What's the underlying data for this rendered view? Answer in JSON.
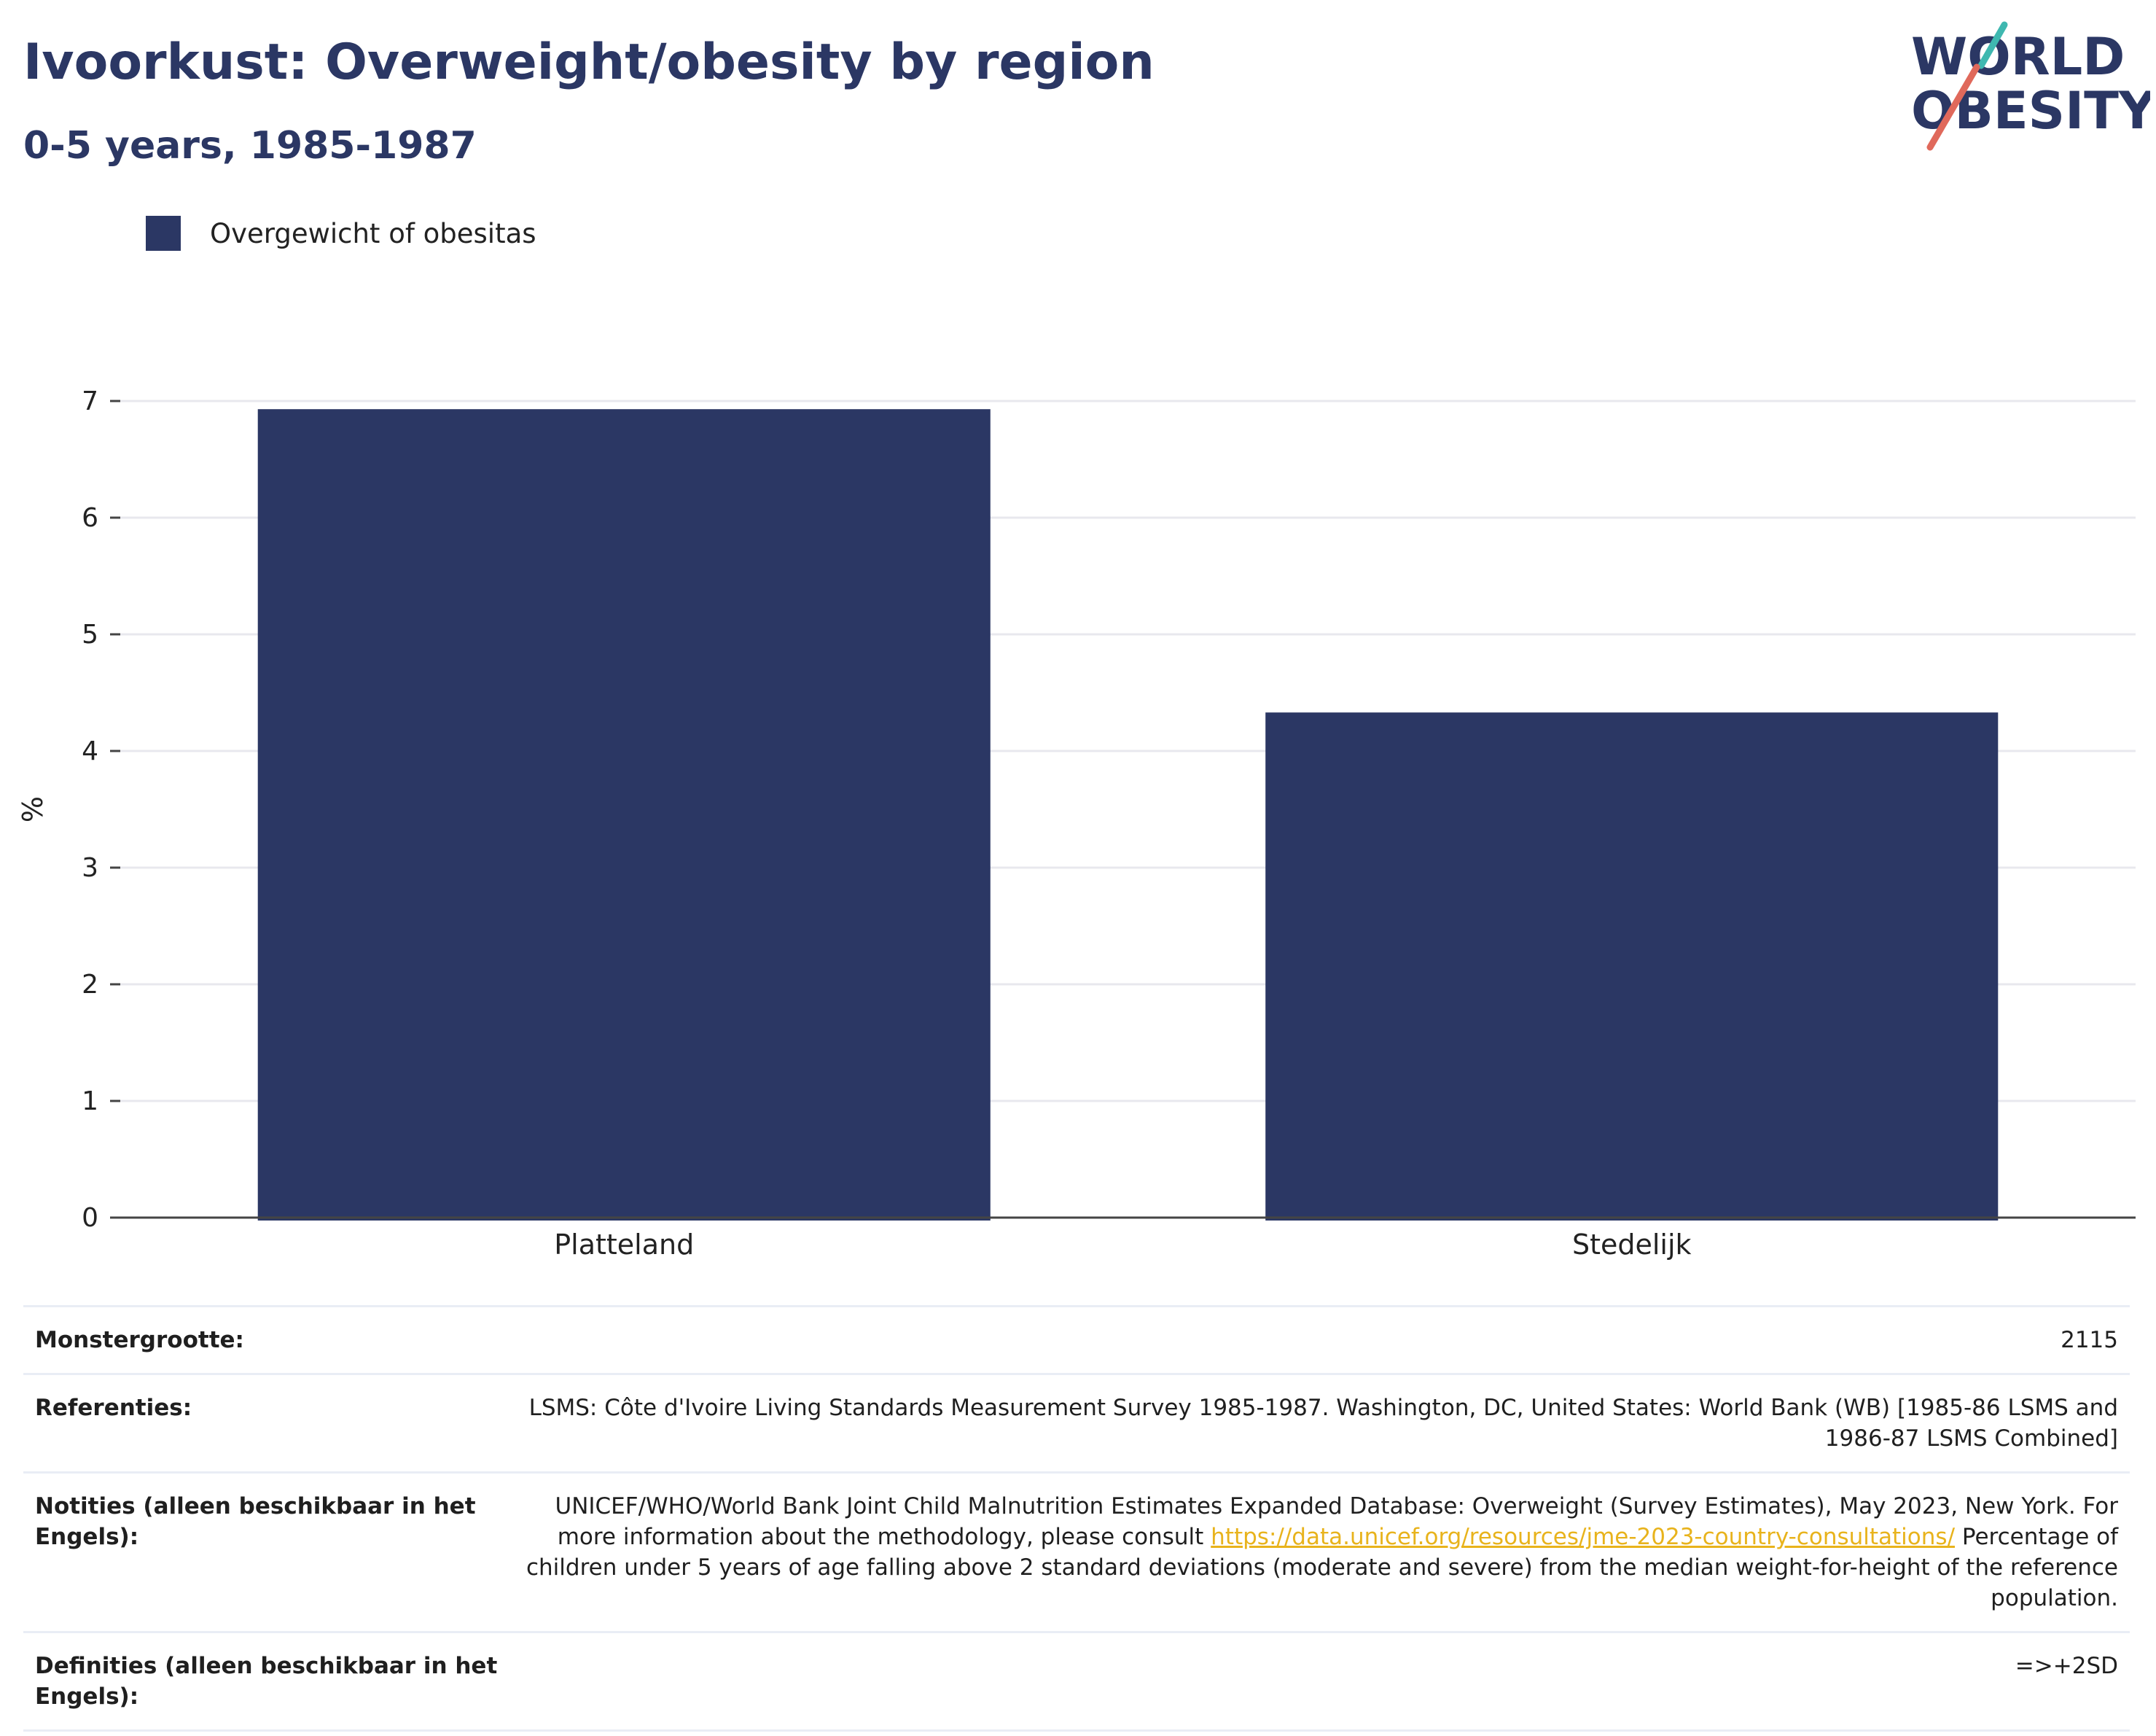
{
  "header": {
    "title": "Ivoorkust: Overweight/obesity by region",
    "subtitle": "0-5 years, 1985-1987"
  },
  "logo": {
    "line1": "WORLD",
    "line2": "OBESITY",
    "accent_teal": "#3fb8b0",
    "accent_red": "#e0695b",
    "text_color": "#2b3764"
  },
  "legend": {
    "items": [
      {
        "label": "Overgewicht of obesitas",
        "color": "#2b3764"
      }
    ]
  },
  "chart_data": {
    "type": "bar",
    "categories": [
      "Platteland",
      "Stedelijk"
    ],
    "series": [
      {
        "name": "Overgewicht of obesitas",
        "values": [
          6.93,
          4.33
        ],
        "color": "#2b3764"
      }
    ],
    "ylabel": "%",
    "ylim": [
      0,
      7
    ],
    "yticks": [
      0,
      1,
      2,
      3,
      4,
      5,
      6,
      7
    ],
    "grid": true,
    "legend_position": "top-left"
  },
  "meta": {
    "rows": [
      {
        "key": "Monstergrootte:",
        "value": "2115"
      },
      {
        "key": "Referenties:",
        "value": "LSMS: Côte d'Ivoire Living Standards Measurement Survey 1985-1987. Washington, DC, United States: World Bank (WB) [1985-86 LSMS and 1986-87 LSMS Combined]"
      },
      {
        "key": "Notities (alleen beschikbaar in het Engels):",
        "value_before": "UNICEF/WHO/World Bank Joint Child Malnutrition Estimates Expanded Database: Overweight (Survey Estimates), May 2023, New York. For more information about the methodology, please consult ",
        "link": "https://data.unicef.org/resources/jme-2023-country-consultations/",
        "value_after": " Percentage of children under 5 years of age falling above 2 standard deviations (moderate and severe) from the median weight-for-height of the reference population."
      },
      {
        "key": "Definities (alleen beschikbaar in het Engels):",
        "value": "=>+2SD"
      }
    ]
  }
}
